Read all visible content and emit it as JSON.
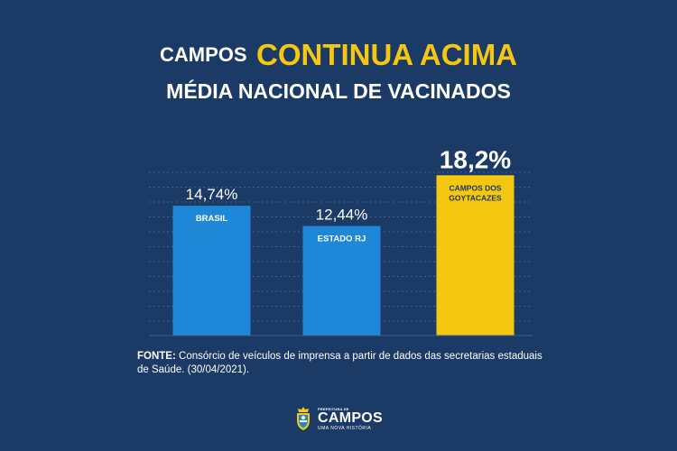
{
  "header": {
    "title_part1": "CAMPOS",
    "title_part2": "CONTINUA ACIMA",
    "subtitle": "MÉDIA NACIONAL DE VACINADOS"
  },
  "colors": {
    "background": "#1b3a66",
    "bar_blue": "#1e88d7",
    "bar_yellow": "#f6c710",
    "grid": "#3e5f8c",
    "accent_title": "#f6c710"
  },
  "chart_data": {
    "type": "bar",
    "categories": [
      "BRASIL",
      "ESTADO RJ",
      "CAMPOS DOS GOYTACAZES"
    ],
    "category_lines": [
      [
        "BRASIL"
      ],
      [
        "ESTADO RJ"
      ],
      [
        "CAMPOS DOS",
        "GOYTACAZES"
      ]
    ],
    "values": [
      14.74,
      12.44,
      18.2
    ],
    "value_labels": [
      "14,74%",
      "12,44%",
      "18,2%"
    ],
    "bar_colors": [
      "#1e88d7",
      "#1e88d7",
      "#f6c710"
    ],
    "ylim": [
      0,
      21
    ],
    "grid": true,
    "title": "",
    "xlabel": "",
    "ylabel": ""
  },
  "source": {
    "label": "FONTE:",
    "text": " Consórcio de veículos de imprensa a partir de dados das secretarias estaduais de Saúde. (30/04/2021)."
  },
  "logo": {
    "top": "PREFEITURA DE",
    "main": "CAMPOS",
    "sub": "UMA NOVA HISTÓRIA"
  }
}
